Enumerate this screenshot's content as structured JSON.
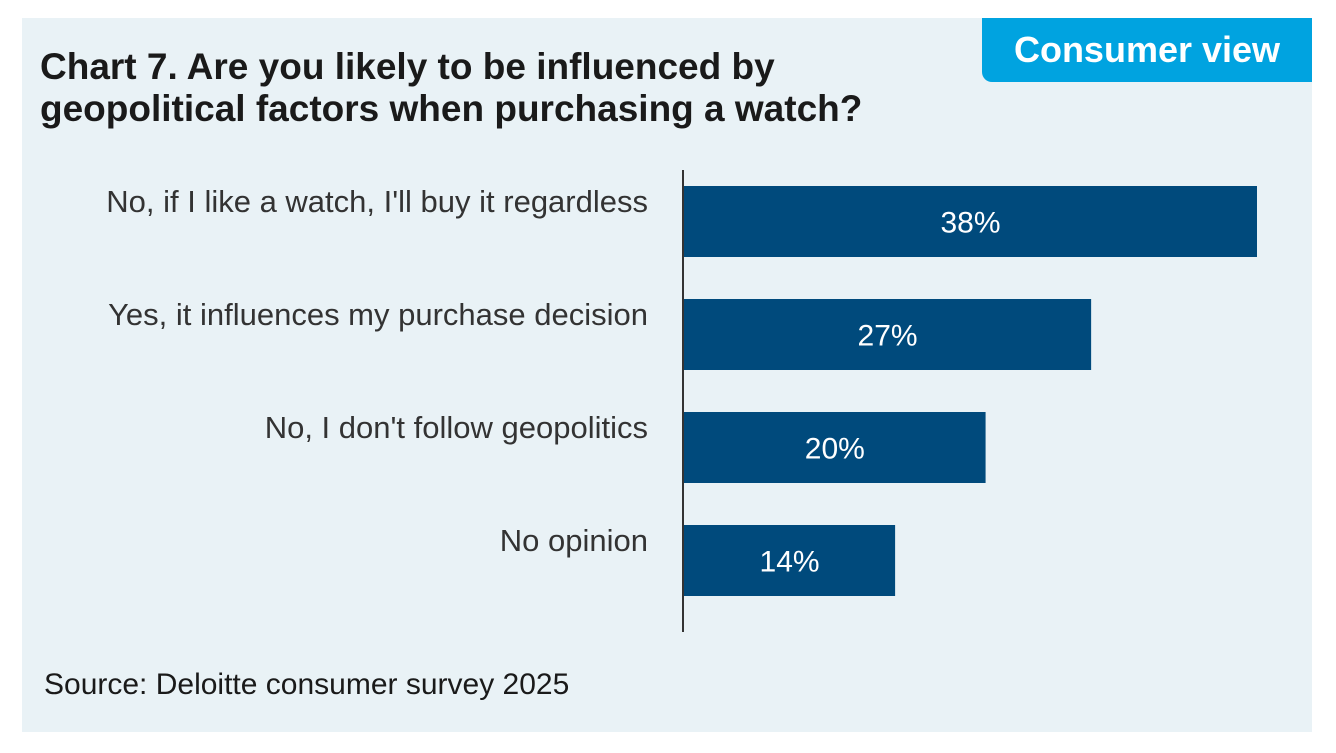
{
  "header": {
    "title": "Chart 7. Are you likely to be influenced by geopolitical factors when purchasing a watch?",
    "badge": "Consumer view"
  },
  "footer": {
    "source": "Source: Deloitte consumer survey 2025"
  },
  "colors": {
    "bar": "#004a7c",
    "badge": "#00a3e0",
    "panel": "#e9f2f6"
  },
  "chart_data": {
    "type": "bar",
    "orientation": "horizontal",
    "title": "Chart 7. Are you likely to be influenced by geopolitical factors when purchasing a watch?",
    "categories": [
      "No, if I like a watch, I'll buy it regardless",
      "Yes, it influences my purchase decision",
      "No, I don't follow geopolitics",
      "No opinion"
    ],
    "values": [
      38,
      27,
      20,
      14
    ],
    "value_labels": [
      "38%",
      "27%",
      "20%",
      "14%"
    ],
    "unit": "%",
    "xlim": [
      0,
      40
    ],
    "xlabel": "",
    "ylabel": "",
    "grid": false
  }
}
